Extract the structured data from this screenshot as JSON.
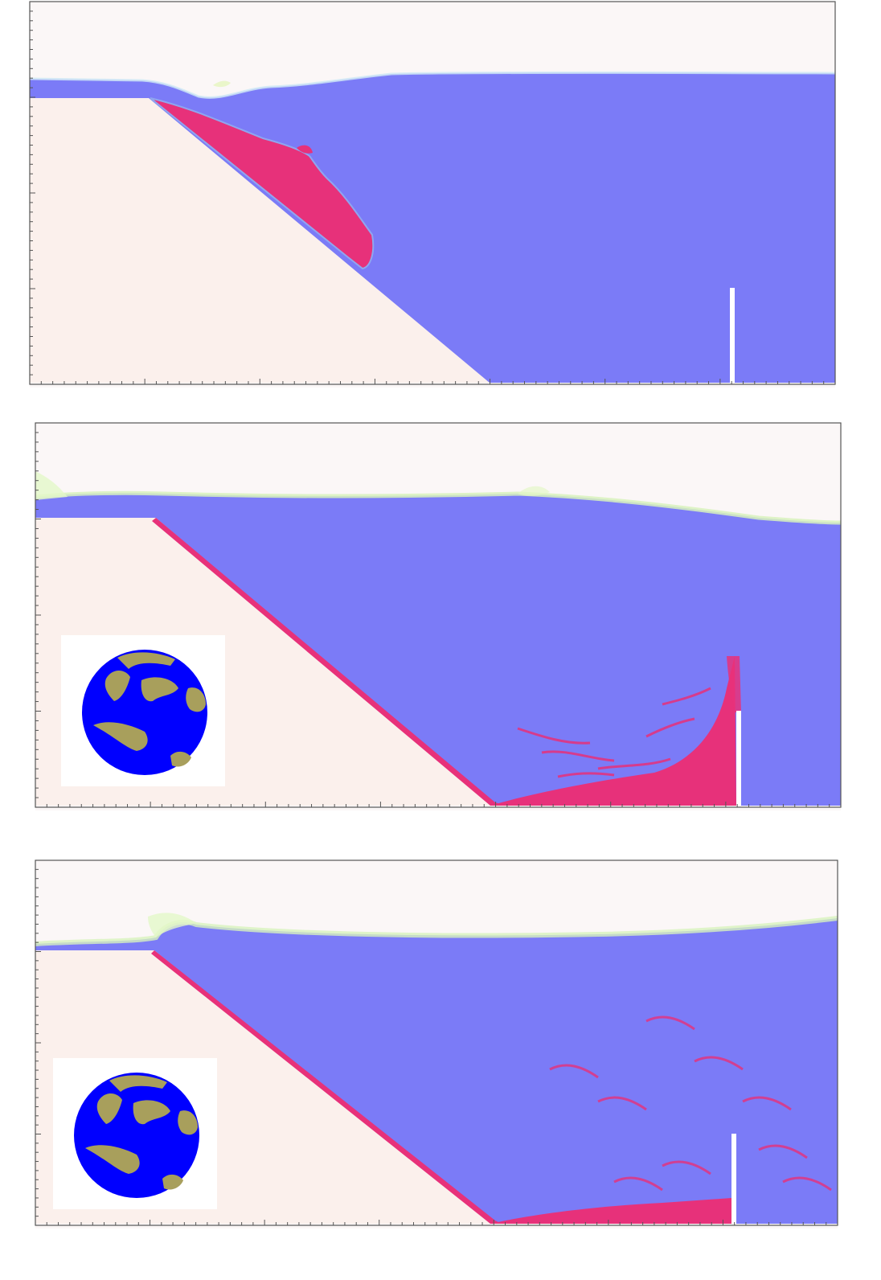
{
  "figure": {
    "panels": [
      {
        "id": "panel-1",
        "has_inset": false
      },
      {
        "id": "panel-2",
        "has_inset": true
      },
      {
        "id": "panel-3",
        "has_inset": true
      }
    ]
  },
  "colors": {
    "air": "#fbf7f7",
    "water": "#7b7bf7",
    "slope": "#fbf0ec",
    "sediment": "#e7317a",
    "interface": "#d8f2bd",
    "barrier": "#ffffff",
    "inset_water": "#0000ff",
    "inset_particle": "#a89f5c"
  }
}
